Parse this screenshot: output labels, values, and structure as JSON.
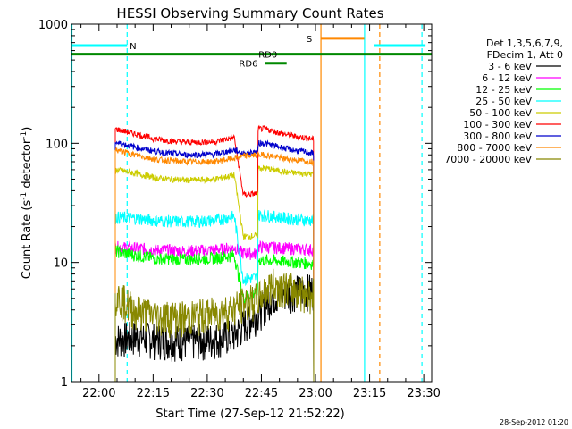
{
  "chart_data": {
    "type": "line",
    "title": "HESSI Observing Summary Count Rates",
    "xlabel": "Start Time (27-Sep-12 21:52:22)",
    "ylabel_main": "Count Rate (s",
    "ylabel_sup1": "-1",
    "ylabel_mid": " detector",
    "ylabel_sup2": "-1",
    "ylabel_end": ")",
    "yscale": "log",
    "xlim_minutes": [
      1312.37,
      1412.2
    ],
    "ylim": [
      1,
      1000
    ],
    "x_ticks": [
      {
        "label": "22:00",
        "min": 1320
      },
      {
        "label": "22:15",
        "min": 1335
      },
      {
        "label": "22:30",
        "min": 1350
      },
      {
        "label": "22:45",
        "min": 1365
      },
      {
        "label": "23:00",
        "min": 1380
      },
      {
        "label": "23:15",
        "min": 1395
      },
      {
        "label": "23:30",
        "min": 1410
      }
    ],
    "y_ticks": [
      {
        "label": "1",
        "value": 1
      },
      {
        "label": "10",
        "value": 10
      },
      {
        "label": "100",
        "value": 100
      },
      {
        "label": "1000",
        "value": 1000
      }
    ],
    "legend": {
      "header1": "Det 1,3,5,6,7,9,",
      "header2": "FDecim 1, Att 0",
      "placement": "right"
    },
    "series": [
      {
        "name": "3 - 6 keV",
        "color": "#000000",
        "values": [
          {
            "x": 1324.5,
            "y": 2.3
          },
          {
            "x": 1330,
            "y": 2.4
          },
          {
            "x": 1336,
            "y": 2.3
          },
          {
            "x": 1344,
            "y": 2.2
          },
          {
            "x": 1352,
            "y": 2.3
          },
          {
            "x": 1357.5,
            "y": 2.5
          },
          {
            "x": 1360,
            "y": 3.0
          },
          {
            "x": 1364,
            "y": 3.8
          },
          {
            "x": 1368,
            "y": 5.3
          },
          {
            "x": 1374,
            "y": 5.8
          },
          {
            "x": 1379.5,
            "y": 6.0
          }
        ]
      },
      {
        "name": "6 - 12 keV",
        "color": "#ff00ff",
        "values": [
          {
            "x": 1324.5,
            "y": 13.5
          },
          {
            "x": 1330,
            "y": 13.2
          },
          {
            "x": 1336,
            "y": 12.8
          },
          {
            "x": 1344,
            "y": 12.5
          },
          {
            "x": 1352,
            "y": 12.8
          },
          {
            "x": 1357.5,
            "y": 13.4
          },
          {
            "x": 1360,
            "y": 12.0
          },
          {
            "x": 1364,
            "y": 11.8
          },
          {
            "x": 1366,
            "y": 13.5
          },
          {
            "x": 1372,
            "y": 13.2
          },
          {
            "x": 1379.5,
            "y": 12.8
          }
        ]
      },
      {
        "name": "12 - 25 keV",
        "color": "#00ff00",
        "values": [
          {
            "x": 1324.5,
            "y": 12.5
          },
          {
            "x": 1330,
            "y": 11.5
          },
          {
            "x": 1336,
            "y": 10.8
          },
          {
            "x": 1344,
            "y": 10.6
          },
          {
            "x": 1352,
            "y": 10.9
          },
          {
            "x": 1357.5,
            "y": 11.5
          },
          {
            "x": 1360,
            "y": 5.0
          },
          {
            "x": 1364,
            "y": 5.8
          },
          {
            "x": 1366,
            "y": 10.5
          },
          {
            "x": 1372,
            "y": 10.2
          },
          {
            "x": 1379.5,
            "y": 9.8
          }
        ]
      },
      {
        "name": "25 - 50 keV",
        "color": "#00ffff",
        "values": [
          {
            "x": 1324.5,
            "y": 24
          },
          {
            "x": 1330,
            "y": 23.5
          },
          {
            "x": 1336,
            "y": 22.5
          },
          {
            "x": 1344,
            "y": 22
          },
          {
            "x": 1352,
            "y": 22.5
          },
          {
            "x": 1357.5,
            "y": 24.5
          },
          {
            "x": 1360,
            "y": 7.2
          },
          {
            "x": 1364,
            "y": 7.5
          },
          {
            "x": 1366,
            "y": 25
          },
          {
            "x": 1372,
            "y": 23.5
          },
          {
            "x": 1379.5,
            "y": 22.5
          }
        ]
      },
      {
        "name": "50 - 100 keV",
        "color": "#cccc00",
        "values": [
          {
            "x": 1324.5,
            "y": 60
          },
          {
            "x": 1330,
            "y": 56
          },
          {
            "x": 1336,
            "y": 51
          },
          {
            "x": 1344,
            "y": 49
          },
          {
            "x": 1352,
            "y": 50
          },
          {
            "x": 1357.5,
            "y": 54
          },
          {
            "x": 1360,
            "y": 16.5
          },
          {
            "x": 1364,
            "y": 16.8
          },
          {
            "x": 1366,
            "y": 62
          },
          {
            "x": 1372,
            "y": 57
          },
          {
            "x": 1379.5,
            "y": 55
          }
        ]
      },
      {
        "name": "100 - 300 keV",
        "color": "#ff0000",
        "values": [
          {
            "x": 1324.5,
            "y": 132
          },
          {
            "x": 1330,
            "y": 120
          },
          {
            "x": 1336,
            "y": 108
          },
          {
            "x": 1344,
            "y": 102
          },
          {
            "x": 1352,
            "y": 103
          },
          {
            "x": 1357.5,
            "y": 112
          },
          {
            "x": 1360,
            "y": 37
          },
          {
            "x": 1364,
            "y": 38
          },
          {
            "x": 1366,
            "y": 132
          },
          {
            "x": 1372,
            "y": 118
          },
          {
            "x": 1379.5,
            "y": 108
          }
        ]
      },
      {
        "name": "300 - 800 keV",
        "color": "#0000cc",
        "values": [
          {
            "x": 1324.5,
            "y": 102
          },
          {
            "x": 1330,
            "y": 93
          },
          {
            "x": 1336,
            "y": 85
          },
          {
            "x": 1344,
            "y": 80
          },
          {
            "x": 1352,
            "y": 81
          },
          {
            "x": 1357.5,
            "y": 88
          },
          {
            "x": 1360,
            "y": 82
          },
          {
            "x": 1364,
            "y": 85
          },
          {
            "x": 1366,
            "y": 100
          },
          {
            "x": 1372,
            "y": 90
          },
          {
            "x": 1379.5,
            "y": 82
          }
        ]
      },
      {
        "name": "800 - 7000 keV",
        "color": "#ff8800",
        "values": [
          {
            "x": 1324.5,
            "y": 88
          },
          {
            "x": 1330,
            "y": 80
          },
          {
            "x": 1336,
            "y": 73
          },
          {
            "x": 1344,
            "y": 70
          },
          {
            "x": 1352,
            "y": 70
          },
          {
            "x": 1357.5,
            "y": 75
          },
          {
            "x": 1360,
            "y": 78
          },
          {
            "x": 1364,
            "y": 80
          },
          {
            "x": 1366,
            "y": 80
          },
          {
            "x": 1372,
            "y": 74
          },
          {
            "x": 1379.5,
            "y": 70
          }
        ]
      },
      {
        "name": "7000 - 20000 keV",
        "color": "#888800",
        "values": [
          {
            "x": 1324.5,
            "y": 5.5
          },
          {
            "x": 1330,
            "y": 4.0
          },
          {
            "x": 1336,
            "y": 3.6
          },
          {
            "x": 1344,
            "y": 3.5
          },
          {
            "x": 1352,
            "y": 3.8
          },
          {
            "x": 1357.5,
            "y": 4.2
          },
          {
            "x": 1360,
            "y": 4.6
          },
          {
            "x": 1364,
            "y": 5.0
          },
          {
            "x": 1368,
            "y": 6.6
          },
          {
            "x": 1374,
            "y": 6.0
          },
          {
            "x": 1379.5,
            "y": 5.5
          }
        ]
      }
    ],
    "flag_bars": [
      {
        "label": "N",
        "color": "#00ffff",
        "level": 660,
        "segments": [
          [
            1312.37,
            1327.8
          ],
          [
            1396.2,
            1410.5
          ]
        ],
        "label_at": 1328.5
      },
      {
        "label": "S",
        "color": "#ff8800",
        "level": 760,
        "segments": [
          [
            1381.5,
            1393.5
          ]
        ],
        "label_at": 1377.5
      },
      {
        "label": "RD0",
        "color": "#008800",
        "level": 560,
        "segments": [
          [
            1312.37,
            1412.2
          ]
        ],
        "label_at": 1364.2
      },
      {
        "label": "RD6",
        "color": "#008800",
        "level": 470,
        "segments": [
          [
            1366,
            1372
          ]
        ],
        "label_at": 1358.8
      }
    ],
    "vertical_markers": [
      {
        "x": 1312.5,
        "color": "#00ffff",
        "style": "solid"
      },
      {
        "x": 1327.8,
        "color": "#00ffff",
        "style": "dashed"
      },
      {
        "x": 1381.5,
        "color": "#ff8800",
        "style": "solid"
      },
      {
        "x": 1393.6,
        "color": "#00ffff",
        "style": "solid"
      },
      {
        "x": 1397.8,
        "color": "#ff8800",
        "style": "dashed"
      },
      {
        "x": 1409.5,
        "color": "#00ffff",
        "style": "dashed"
      }
    ],
    "timestamp": "28-Sep-2012 01:20"
  }
}
